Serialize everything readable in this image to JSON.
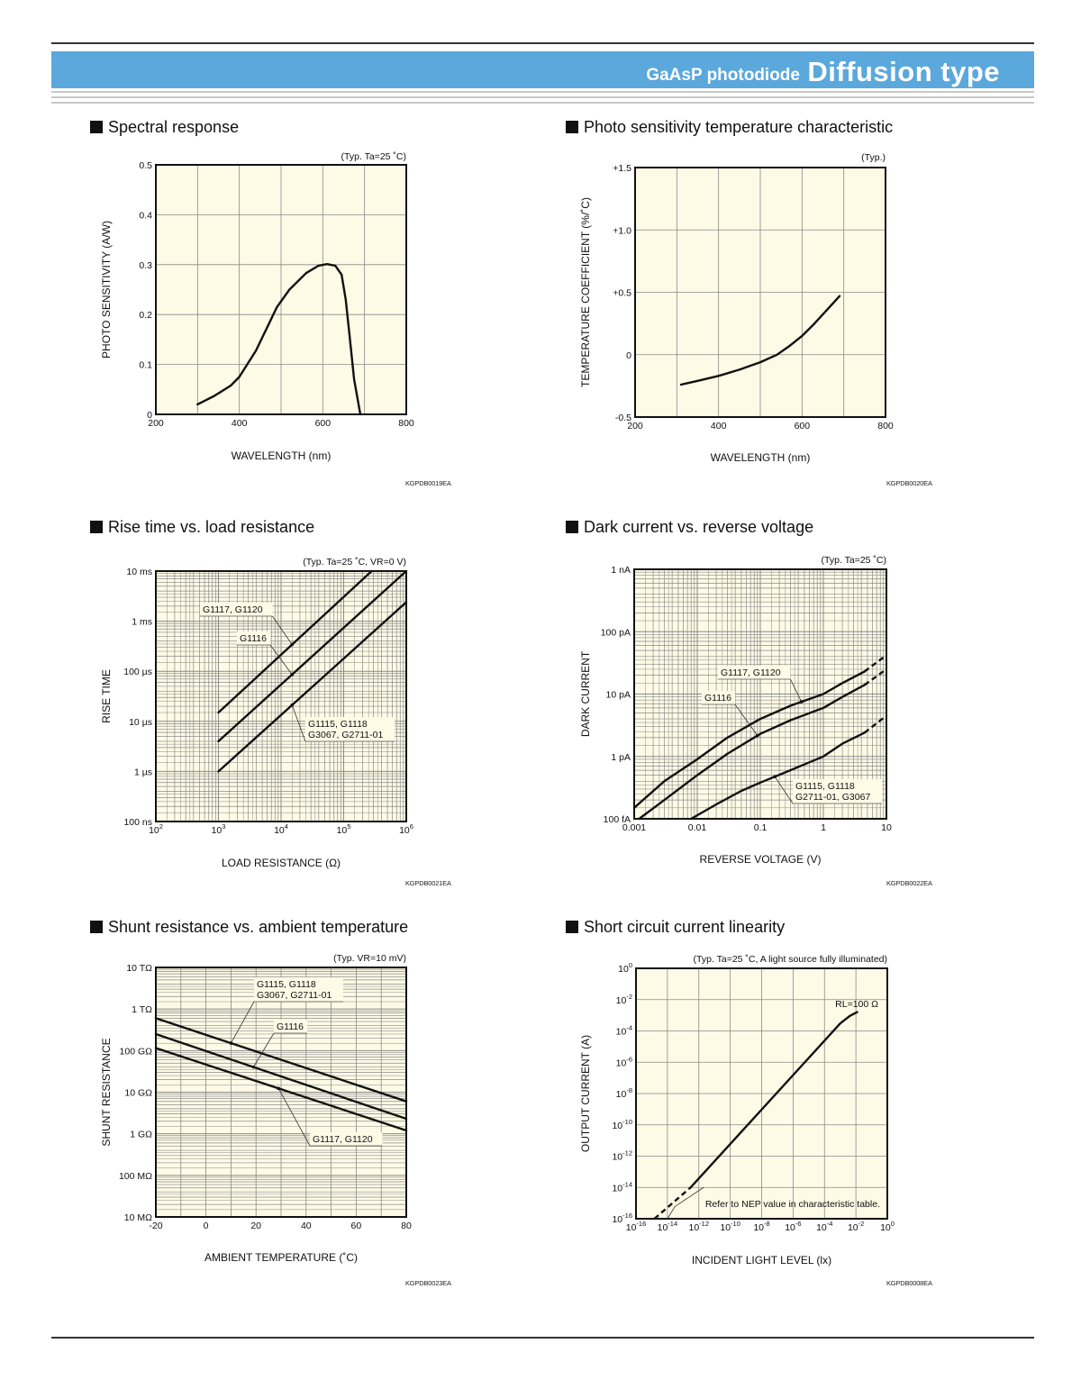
{
  "header": {
    "subtitle": "GaAsP photodiode",
    "title": "Diffusion type",
    "band_color": "#5ba8dc"
  },
  "chart_data": [
    {
      "id": "spectral",
      "type": "line",
      "title": "Spectral response",
      "note": "(Typ. Ta=25 ˚C)",
      "xlabel": "WAVELENGTH (nm)",
      "ylabel": "PHOTO SENSITIVITY (A/W)",
      "code": "KGPDB0019EA",
      "xscale": "linear",
      "yscale": "linear",
      "xlim": [
        200,
        800
      ],
      "ylim": [
        0,
        0.5
      ],
      "xticks": [
        200,
        400,
        600,
        800
      ],
      "xtick_labels": [
        "200",
        "400",
        "600",
        "800"
      ],
      "yticks": [
        0,
        0.1,
        0.2,
        0.3,
        0.4,
        0.5
      ],
      "ytick_labels": [
        "0",
        "0.1",
        "0.2",
        "0.3",
        "0.4",
        "0.5"
      ],
      "xgrid": [
        300,
        400,
        500,
        600,
        700
      ],
      "ygrid": [
        0.1,
        0.2,
        0.3,
        0.4
      ],
      "series": [
        {
          "name": "sensitivity",
          "x": [
            300,
            340,
            380,
            400,
            440,
            470,
            490,
            520,
            560,
            590,
            610,
            630,
            645,
            655,
            665,
            675,
            690
          ],
          "y": [
            0.02,
            0.037,
            0.058,
            0.075,
            0.128,
            0.18,
            0.215,
            0.25,
            0.283,
            0.298,
            0.301,
            0.298,
            0.28,
            0.23,
            0.15,
            0.07,
            0.0
          ]
        }
      ],
      "labels": []
    },
    {
      "id": "tempcoef",
      "type": "line",
      "title": "Photo sensitivity temperature characteristic",
      "note": "(Typ.)",
      "xlabel": "WAVELENGTH (nm)",
      "ylabel": "TEMPERATURE COEFFICIENT (%/˚C)",
      "code": "KGPDB0020EA",
      "xscale": "linear",
      "yscale": "linear",
      "xlim": [
        200,
        800
      ],
      "ylim": [
        -0.5,
        1.5
      ],
      "xticks": [
        200,
        400,
        600,
        800
      ],
      "xtick_labels": [
        "200",
        "400",
        "600",
        "800"
      ],
      "yticks": [
        -0.5,
        0,
        0.5,
        1.0,
        1.5
      ],
      "ytick_labels": [
        "-0.5",
        "0",
        "+0.5",
        "+1.0",
        "+1.5"
      ],
      "xgrid": [
        300,
        400,
        500,
        600,
        700
      ],
      "ygrid": [
        0,
        0.5,
        1.0
      ],
      "series": [
        {
          "name": "coefficient",
          "x": [
            310,
            350,
            400,
            450,
            500,
            540,
            570,
            600,
            630,
            660,
            690
          ],
          "y": [
            -0.24,
            -0.21,
            -0.17,
            -0.12,
            -0.06,
            0.0,
            0.07,
            0.15,
            0.25,
            0.36,
            0.47
          ]
        }
      ],
      "labels": []
    },
    {
      "id": "risetime",
      "type": "line",
      "title": "Rise time vs. load resistance",
      "note": "(Typ. Ta=25 ˚C, VR=0 V)",
      "xlabel": "LOAD RESISTANCE (Ω)",
      "ylabel": "RISE TIME",
      "code": "KGPDB0021EA",
      "xscale": "log",
      "yscale": "log",
      "xlim": [
        100,
        1000000
      ],
      "ylim": [
        1e-07,
        0.01
      ],
      "xticks": [
        100,
        1000,
        10000,
        100000,
        1000000
      ],
      "xtick_labels": [
        "10^2",
        "10^3",
        "10^4",
        "10^5",
        "10^6"
      ],
      "yticks": [
        1e-07,
        1e-06,
        1e-05,
        0.0001,
        0.001,
        0.01
      ],
      "ytick_labels": [
        "100 ns",
        "1 µs",
        "10 µs",
        "100 µs",
        "1 ms",
        "10 ms"
      ],
      "series": [
        {
          "name": "G1117, G1120",
          "x": [
            1000,
            280000
          ],
          "y": [
            1.5e-05,
            0.01
          ]
        },
        {
          "name": "G1116",
          "x": [
            1000,
            1000000
          ],
          "y": [
            4e-06,
            0.01
          ]
        },
        {
          "name": "G1115, G1118 / G3067, G2711-01",
          "x": [
            1000,
            1000000
          ],
          "y": [
            1e-06,
            0.0024
          ]
        }
      ],
      "labels": [
        {
          "lines": [
            "G1117, G1120"
          ],
          "series": 0,
          "at_x": 15000
        },
        {
          "lines": [
            "G1116"
          ],
          "series": 1,
          "at_x": 15000
        },
        {
          "lines": [
            "G1115, G1118",
            "G3067, G2711-01"
          ],
          "series": 2,
          "at_x": 15000
        }
      ]
    },
    {
      "id": "darkcurrent",
      "type": "line",
      "title": "Dark current vs. reverse voltage",
      "note": "(Typ. Ta=25 ˚C)",
      "xlabel": "REVERSE VOLTAGE (V)",
      "ylabel": "DARK CURRENT",
      "code": "KGPDB0022EA",
      "xscale": "log",
      "yscale": "log",
      "xlim": [
        0.001,
        10
      ],
      "ylim": [
        1e-13,
        1e-09
      ],
      "xticks": [
        0.001,
        0.01,
        0.1,
        1,
        10
      ],
      "xtick_labels": [
        "0.001",
        "0.01",
        "0.1",
        "1",
        "10"
      ],
      "yticks": [
        1e-13,
        1e-12,
        1e-11,
        1e-10,
        1e-09
      ],
      "ytick_labels": [
        "100 fA",
        "1 pA",
        "10 pA",
        "100 pA",
        "1 nA"
      ],
      "series": [
        {
          "name": "G1117, G1120",
          "x": [
            0.001,
            0.003,
            0.01,
            0.03,
            0.1,
            0.3,
            1,
            2,
            4.5
          ],
          "y": [
            1.5e-13,
            4e-13,
            9e-13,
            2e-12,
            4e-12,
            6.5e-12,
            1e-11,
            1.5e-11,
            2.3e-11
          ],
          "dash_to": {
            "x": 10,
            "y": 4.2e-11
          }
        },
        {
          "name": "G1116",
          "x": [
            0.0012,
            0.003,
            0.01,
            0.03,
            0.1,
            0.3,
            1,
            2,
            4.5
          ],
          "y": [
            1e-13,
            2e-13,
            5e-13,
            1.1e-12,
            2.3e-12,
            3.8e-12,
            6e-12,
            9e-12,
            1.4e-11
          ],
          "dash_to": {
            "x": 10,
            "y": 2.5e-11
          }
        },
        {
          "name": "G1115, G1118 / G2711-01, G3067",
          "x": [
            0.008,
            0.02,
            0.05,
            0.1,
            0.3,
            1,
            2,
            4.5
          ],
          "y": [
            1e-13,
            1.7e-13,
            2.8e-13,
            3.8e-13,
            6e-13,
            1e-12,
            1.6e-12,
            2.4e-12
          ],
          "dash_to": {
            "x": 10,
            "y": 4.5e-12
          }
        }
      ],
      "labels": [
        {
          "lines": [
            "G1117, G1120"
          ],
          "series": 0,
          "at_x": 0.45
        },
        {
          "lines": [
            "G1116"
          ],
          "series": 1,
          "at_x": 0.09
        },
        {
          "lines": [
            "G1115, G1118",
            "G2711-01, G3067"
          ],
          "series": 2,
          "at_x": 0.17
        }
      ]
    },
    {
      "id": "shunt",
      "type": "line",
      "title": "Shunt resistance vs. ambient temperature",
      "note": "(Typ. VR=10 mV)",
      "xlabel": "AMBIENT TEMPERATURE (˚C)",
      "ylabel": "SHUNT RESISTANCE",
      "code": "KGPDB0023EA",
      "xscale": "linear",
      "yscale": "log",
      "xlim": [
        -20,
        80
      ],
      "ylim": [
        10000000.0,
        10000000000000.0
      ],
      "xticks": [
        -20,
        0,
        20,
        40,
        60,
        80
      ],
      "xtick_labels": [
        "-20",
        "0",
        "20",
        "40",
        "60",
        "80"
      ],
      "yticks": [
        10000000.0,
        100000000.0,
        1000000000.0,
        10000000000.0,
        100000000000.0,
        1000000000000.0,
        10000000000000.0
      ],
      "ytick_labels": [
        "10 MΩ",
        "100 MΩ",
        "1 GΩ",
        "10 GΩ",
        "100 GΩ",
        "1 TΩ",
        "10 TΩ"
      ],
      "xgrid": [
        -10,
        0,
        10,
        20,
        30,
        40,
        50,
        60,
        70
      ],
      "series": [
        {
          "name": "G1115, G1118 / G3067, G2711-01",
          "x": [
            -20,
            80
          ],
          "y": [
            600000000000.0,
            6000000000.0
          ]
        },
        {
          "name": "G1116",
          "x": [
            -20,
            80
          ],
          "y": [
            250000000000.0,
            2300000000.0
          ]
        },
        {
          "name": "G1117, G1120",
          "x": [
            -20,
            80
          ],
          "y": [
            115000000000.0,
            1200000000.0
          ]
        }
      ],
      "labels": [
        {
          "lines": [
            "G1115, G1118",
            "G3067, G2711-01"
          ],
          "series": 0,
          "at_x": 10
        },
        {
          "lines": [
            "G1116"
          ],
          "series": 1,
          "at_x": 19
        },
        {
          "lines": [
            "G1117, G1120"
          ],
          "series": 2,
          "at_x": 29
        }
      ]
    },
    {
      "id": "linearity",
      "type": "line",
      "title": "Short circuit current linearity",
      "note": "(Typ. Ta=25 ˚C, A light source fully illuminated)",
      "xlabel": "INCIDENT LIGHT LEVEL (lx)",
      "ylabel": "OUTPUT CURRENT (A)",
      "code": "KGPDB0008EA",
      "xscale": "log",
      "yscale": "log",
      "xlim": [
        1e-16,
        1
      ],
      "ylim": [
        1e-16,
        1
      ],
      "xticks": [
        1e-16,
        1e-14,
        1e-12,
        1e-10,
        1e-08,
        1e-06,
        0.0001,
        0.01,
        1
      ],
      "xtick_labels": [
        "10^-16",
        "10^-14",
        "10^-12",
        "10^-10",
        "10^-8",
        "10^-6",
        "10^-4",
        "10^-2",
        "10^0"
      ],
      "yticks": [
        1e-16,
        1e-14,
        1e-12,
        1e-10,
        1e-08,
        1e-06,
        0.0001,
        0.01,
        1
      ],
      "ytick_labels": [
        "10^-16",
        "10^-14",
        "10^-12",
        "10^-10",
        "10^-8",
        "10^-6",
        "10^-4",
        "10^-2",
        "10^0"
      ],
      "series": [
        {
          "name": "RL=100 Ω",
          "x": [
            3e-13,
            0.001,
            0.004,
            0.012
          ],
          "y": [
            1e-14,
            0.0003,
            0.0009,
            0.0016
          ],
          "dash_from": {
            "x": 1.5e-15,
            "y": 1e-16
          }
        }
      ],
      "labels": [],
      "rl_label": "RL=100 Ω",
      "nep_note": "Refer to NEP value in characteristic table."
    }
  ]
}
